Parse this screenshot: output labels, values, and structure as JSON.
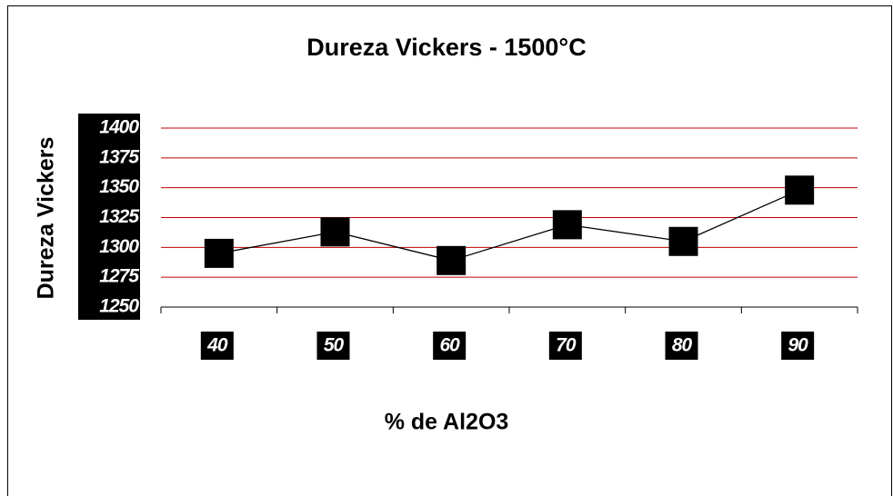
{
  "chart_data": {
    "type": "line",
    "title": "Dureza Vickers - 1500°C",
    "x_label": "% de Al2O3",
    "y_label": "Dureza Vickers",
    "categories": [
      "40",
      "50",
      "60",
      "70",
      "80",
      "90"
    ],
    "series": [
      {
        "name": "Dureza Vickers",
        "color": "#000000",
        "values": [
          1295,
          1313,
          1289,
          1319,
          1305,
          1348
        ]
      }
    ],
    "ylim": [
      1250,
      1400
    ],
    "yticks": [
      1250,
      1275,
      1300,
      1325,
      1350,
      1375,
      1400
    ],
    "grid": true,
    "grid_color": "#c00000"
  }
}
